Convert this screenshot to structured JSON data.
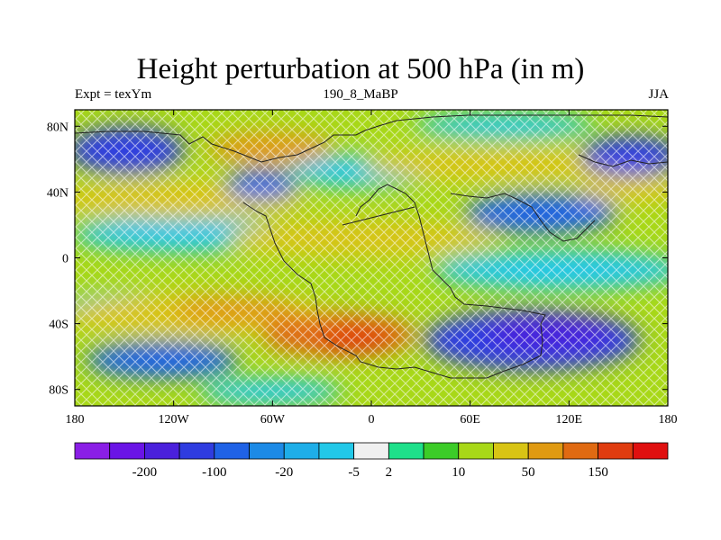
{
  "title": "Height perturbation at 500 hPa (in m)",
  "left_label": "Expt = texYm",
  "center_label": "190_8_MaBP",
  "right_label": "JJA",
  "x_ticks": [
    {
      "lon": -180,
      "label": "180"
    },
    {
      "lon": -120,
      "label": "120W"
    },
    {
      "lon": -60,
      "label": "60W"
    },
    {
      "lon": 0,
      "label": "0"
    },
    {
      "lon": 60,
      "label": "60E"
    },
    {
      "lon": 120,
      "label": "120E"
    },
    {
      "lon": 180,
      "label": "180"
    }
  ],
  "y_ticks": [
    {
      "lat": 80,
      "label": "80N"
    },
    {
      "lat": 40,
      "label": "40N"
    },
    {
      "lat": 0,
      "label": "0"
    },
    {
      "lat": -40,
      "label": "40S"
    },
    {
      "lat": -80,
      "label": "80S"
    }
  ],
  "colorbar": {
    "colors": [
      "#8a1ee6",
      "#6a14e6",
      "#4a20dc",
      "#2f3ce0",
      "#1f62e6",
      "#1c8ae6",
      "#1eaee8",
      "#22c8e8",
      "#f0f0f0",
      "#1ee08a",
      "#3ccc28",
      "#a8d818",
      "#d8c414",
      "#e09a12",
      "#e06a12",
      "#e03c10",
      "#e01010"
    ],
    "labels": [
      {
        "after_index": 1,
        "text": "-200"
      },
      {
        "after_index": 3,
        "text": "-100"
      },
      {
        "after_index": 5,
        "text": "-20"
      },
      {
        "after_index": 7,
        "text": "-5"
      },
      {
        "after_index": 8,
        "text": "2"
      },
      {
        "after_index": 10,
        "text": "10"
      },
      {
        "after_index": 12,
        "text": "50"
      },
      {
        "after_index": 14,
        "text": "150"
      }
    ]
  }
}
